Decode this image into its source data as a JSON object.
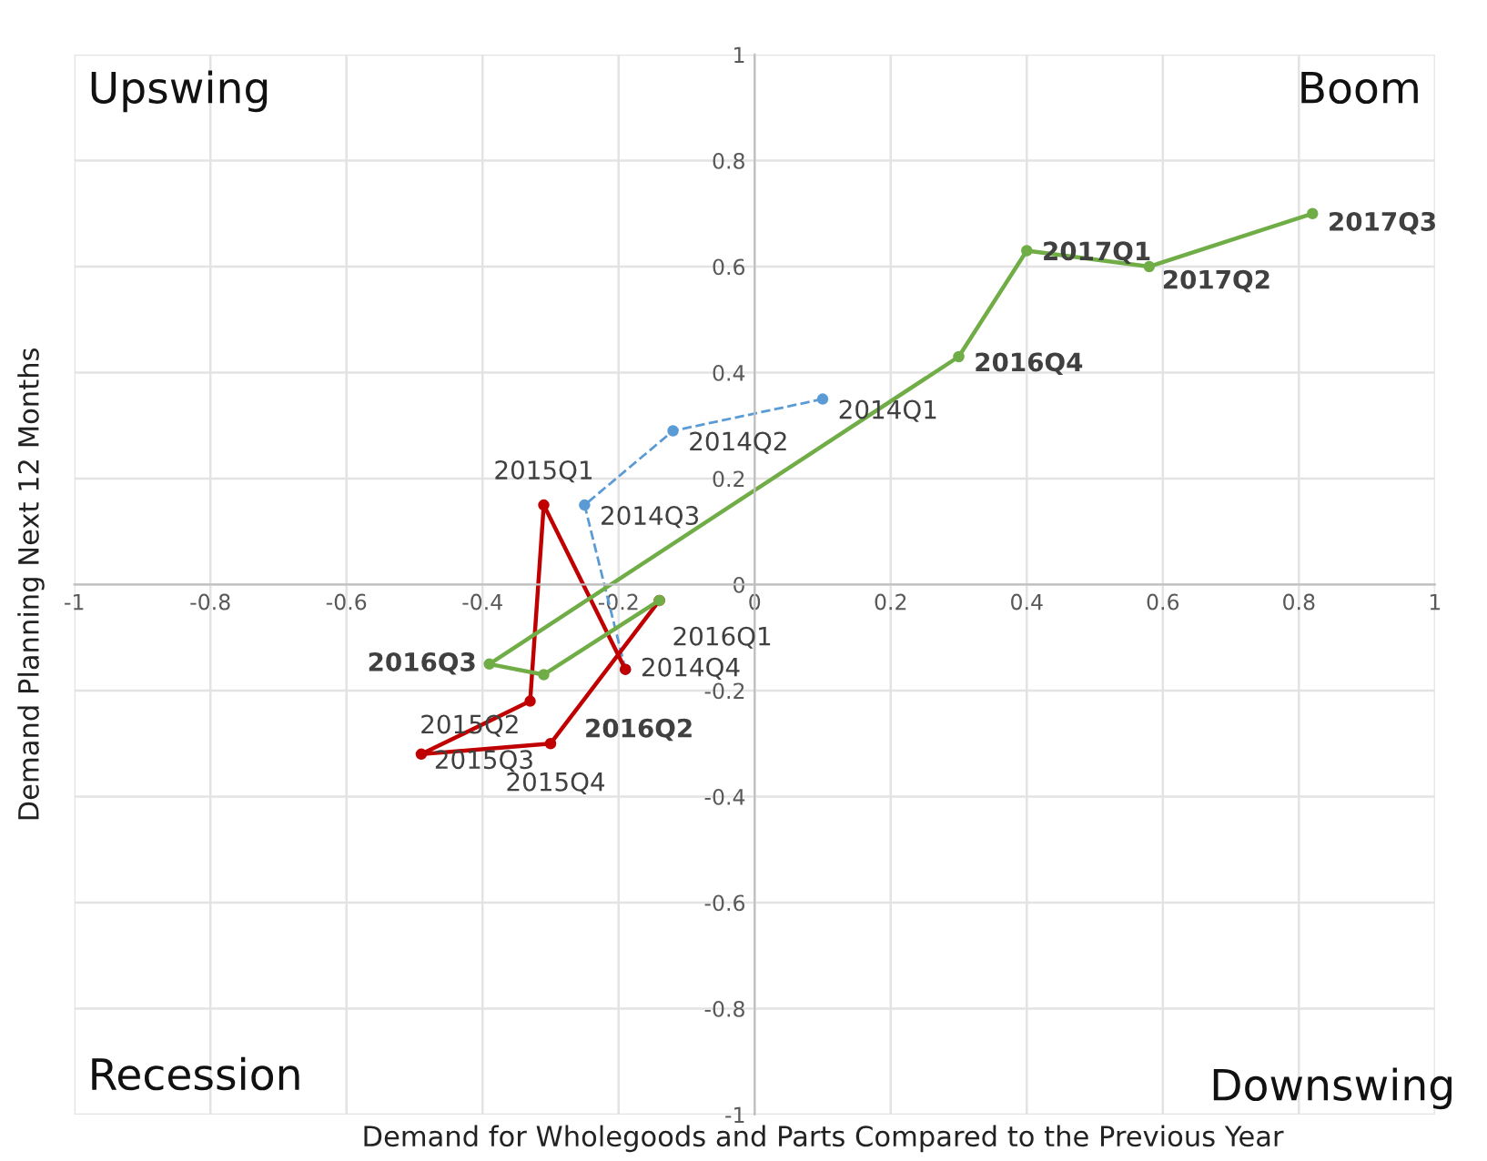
{
  "chart_data": {
    "type": "line",
    "xlabel": "Demand for Wholegoods and Parts Compared to the Previous Year",
    "ylabel": "Demand Planning Next 12 Months",
    "xlim": [
      -1,
      1
    ],
    "ylim": [
      -1,
      1
    ],
    "xticks": [
      -1,
      -0.8,
      -0.6,
      -0.4,
      -0.2,
      0,
      0.2,
      0.4,
      0.6,
      0.8,
      1
    ],
    "yticks": [
      -1,
      -0.8,
      -0.6,
      -0.4,
      -0.2,
      0,
      0.2,
      0.4,
      0.6,
      0.8,
      1
    ],
    "grid": true,
    "marker": "circle",
    "annotations": [
      "Upswing",
      "Boom",
      "Recession",
      "Downswing",
      {
        "text": "2014Q1",
        "x": 0.1,
        "y": 0.35
      },
      {
        "text": "2014Q2",
        "x": -0.12,
        "y": 0.29
      },
      {
        "text": "2014Q3",
        "x": -0.25,
        "y": 0.15
      },
      {
        "text": "2014Q4",
        "x": -0.19,
        "y": -0.16
      },
      {
        "text": "2015Q1",
        "x": -0.31,
        "y": 0.15
      },
      {
        "text": "2015Q2",
        "x": -0.33,
        "y": -0.22
      },
      {
        "text": "2015Q3",
        "x": -0.49,
        "y": -0.32
      },
      {
        "text": "2015Q4",
        "x": -0.3,
        "y": -0.3
      },
      {
        "text": "2016Q1",
        "x": -0.14,
        "y": -0.03
      },
      {
        "text": "2016Q2",
        "x": -0.31,
        "y": -0.17
      },
      {
        "text": "2016Q3",
        "x": -0.39,
        "y": -0.15
      },
      {
        "text": "2016Q4",
        "x": 0.3,
        "y": 0.43
      },
      {
        "text": "2017Q1",
        "x": 0.4,
        "y": 0.63
      },
      {
        "text": "2017Q2",
        "x": 0.58,
        "y": 0.6
      },
      {
        "text": "2017Q3",
        "x": 0.82,
        "y": 0.7
      }
    ],
    "series": [
      {
        "color": "#5b9bd5",
        "line_style": "dashed",
        "x": [
          0.1,
          -0.12,
          -0.25,
          -0.19
        ],
        "values": [
          0.35,
          0.29,
          0.15,
          -0.16
        ]
      },
      {
        "color": "#c00000",
        "line_style": "solid",
        "x": [
          -0.19,
          -0.31,
          -0.33,
          -0.49,
          -0.3,
          -0.14
        ],
        "values": [
          -0.16,
          0.15,
          -0.22,
          -0.32,
          -0.3,
          -0.03
        ]
      },
      {
        "color": "#70ad47",
        "line_style": "solid",
        "x": [
          -0.14,
          -0.31,
          -0.39,
          0.3,
          0.4,
          0.58,
          0.82
        ],
        "values": [
          -0.03,
          -0.17,
          -0.15,
          0.43,
          0.63,
          0.6,
          0.7
        ]
      }
    ]
  }
}
